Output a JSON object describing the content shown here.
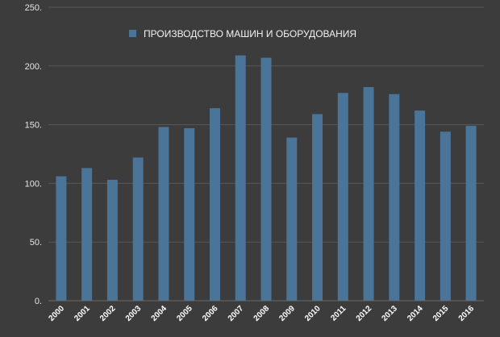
{
  "chart_data": {
    "type": "bar",
    "categories": [
      "2000",
      "2001",
      "2002",
      "2003",
      "2004",
      "2005",
      "2006",
      "2007",
      "2008",
      "2009",
      "2010",
      "2011",
      "2012",
      "2013",
      "2014",
      "2015",
      "2016"
    ],
    "series": [
      {
        "name": "ПРОИЗВОДСТВО МАШИН И ОБОРУДОВАНИЯ",
        "values": [
          106,
          113,
          103,
          122,
          148,
          147,
          164,
          209,
          207,
          139,
          159,
          177,
          182,
          176,
          162,
          144,
          149
        ]
      }
    ],
    "ylim": [
      0,
      250
    ],
    "yticks": [
      "0.",
      "50.",
      "100.",
      "150.",
      "200.",
      "250."
    ],
    "title": "",
    "xlabel": "",
    "ylabel": "",
    "grid": "horizontal",
    "legend_position": "top-center",
    "colors": {
      "background": "#3c3c3c",
      "bar": "#4a7498",
      "gridline": "#575757",
      "text": "#e6e6e6"
    }
  }
}
